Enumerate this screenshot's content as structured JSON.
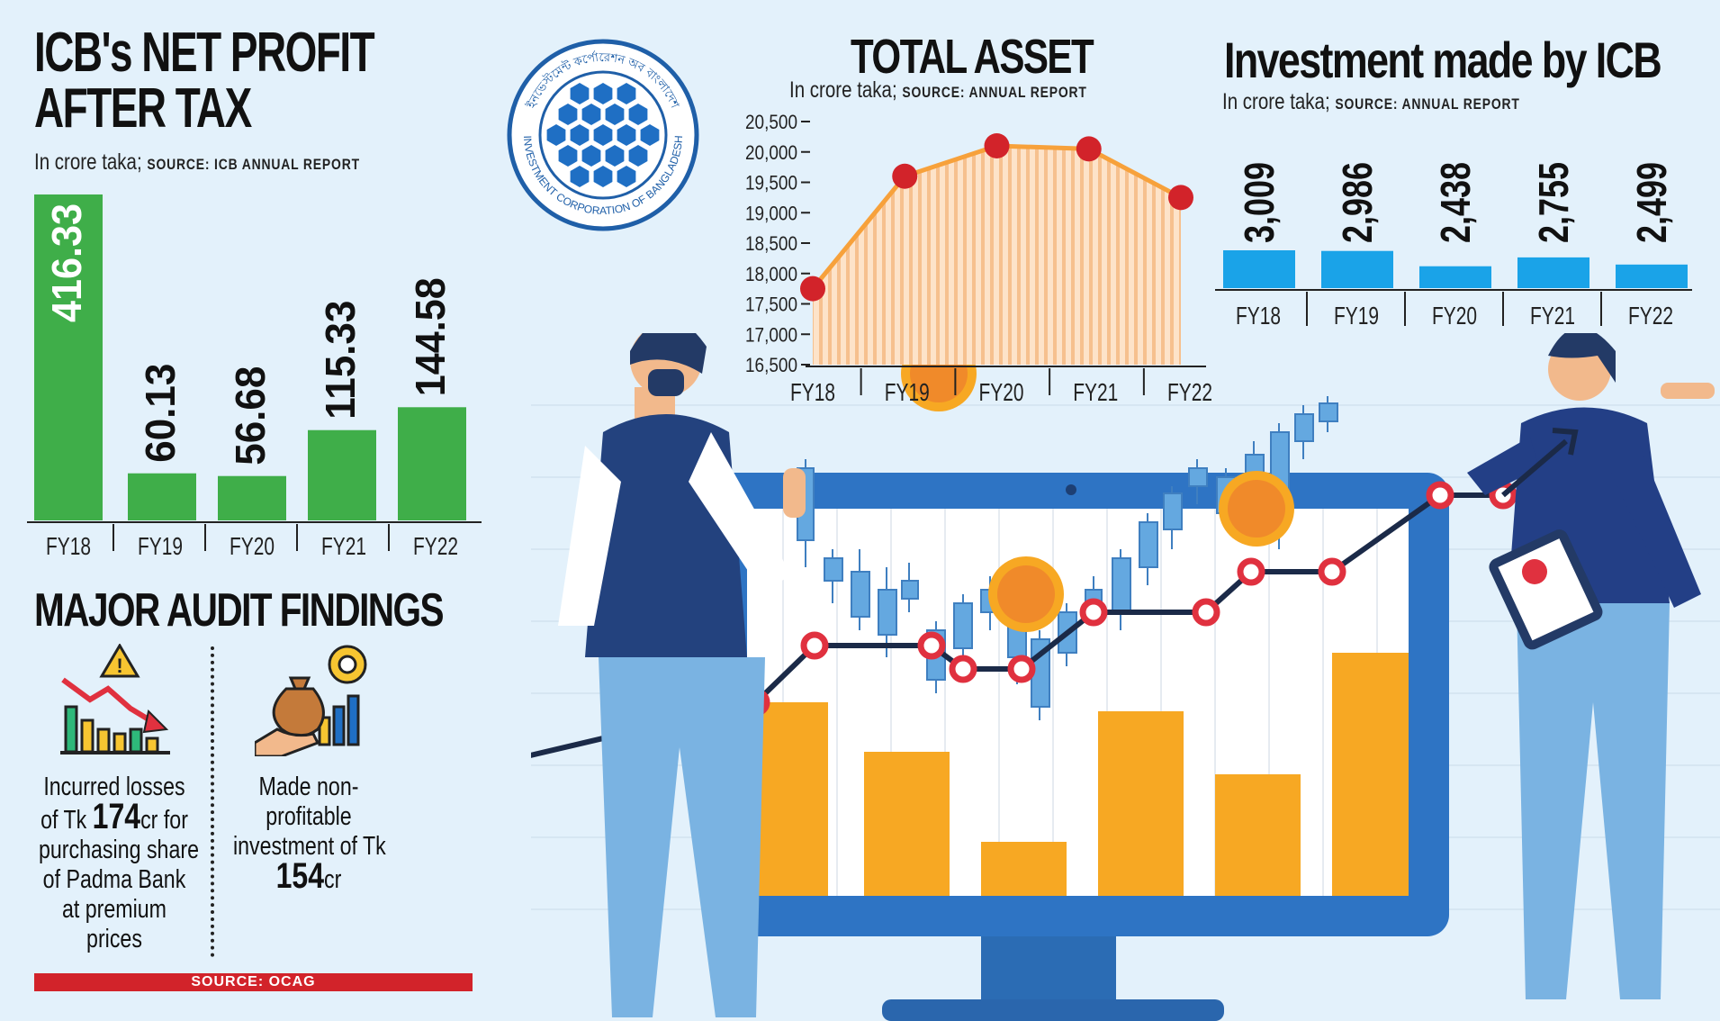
{
  "colors": {
    "green": "#3fae49",
    "blue": "#1aa3e8",
    "orange": "#f7a13b",
    "red": "#d2232a",
    "navy": "#1f3a7a",
    "bg": "#e3f1fb"
  },
  "logo": {
    "arc_top": "ইনভেস্টমেন্ট কর্পোরেশন অব বাংলাদেশ",
    "arc_bottom": "INVESTMENT CORPORATION OF BANGLADESH"
  },
  "profit_chart": {
    "title_line1": "ICB's NET PROFIT",
    "title_line2": "AFTER TAX",
    "subtitle": "In crore taka;",
    "source": "SOURCE: ICB ANNUAL REPORT"
  },
  "asset_chart": {
    "title": "TOTAL ASSET",
    "subtitle": "In crore taka;",
    "source": "SOURCE: ANNUAL REPORT"
  },
  "invest_chart": {
    "title": "Investment made by ICB",
    "subtitle": "In crore taka;",
    "source": "SOURCE: ANNUAL REPORT"
  },
  "chart_data": [
    {
      "type": "bar",
      "categories": [
        "FY18",
        "FY19",
        "FY20",
        "FY21",
        "FY22"
      ],
      "values": [
        416.33,
        60.13,
        56.68,
        115.33,
        144.58
      ],
      "labels": [
        "416.33",
        "60.13",
        "56.68",
        "115.33",
        "144.58"
      ],
      "title": "ICB's NET PROFIT AFTER TAX",
      "ylim": [
        0,
        416.33
      ],
      "grid": false
    },
    {
      "type": "area",
      "categories": [
        "FY18",
        "FY19",
        "FY20",
        "FY21",
        "FY22"
      ],
      "values": [
        17750,
        19600,
        20100,
        20050,
        19250
      ],
      "title": "TOTAL ASSET",
      "ylim": [
        16500,
        20500
      ],
      "yticks": [
        "20,500",
        "20,000",
        "19,500",
        "19,000",
        "18,500",
        "18,000",
        "17,500",
        "17,000",
        "16,500"
      ],
      "grid": false
    },
    {
      "type": "bar",
      "categories": [
        "FY18",
        "FY19",
        "FY20",
        "FY21",
        "FY22"
      ],
      "values": [
        3009,
        2986,
        2438,
        2755,
        2499
      ],
      "labels": [
        "3,009",
        "2,986",
        "2,438",
        "2,755",
        "2,499"
      ],
      "title": "Investment made by ICB",
      "grid": false
    }
  ],
  "audit": {
    "title": "MAJOR AUDIT FINDINGS",
    "left_l1": "Incurred losses",
    "left_l2a": "of Tk ",
    "left_l2b": "174",
    "left_l2c": "cr for",
    "left_l3": "purchasing share",
    "left_l4": "of Padma Bank",
    "left_l5": "at premium",
    "left_l6": "prices",
    "right_l1": "Made non-",
    "right_l2": "profitable",
    "right_l3": "investment of Tk",
    "right_l4a": "154",
    "right_l4b": "cr",
    "source": "SOURCE: OCAG"
  }
}
